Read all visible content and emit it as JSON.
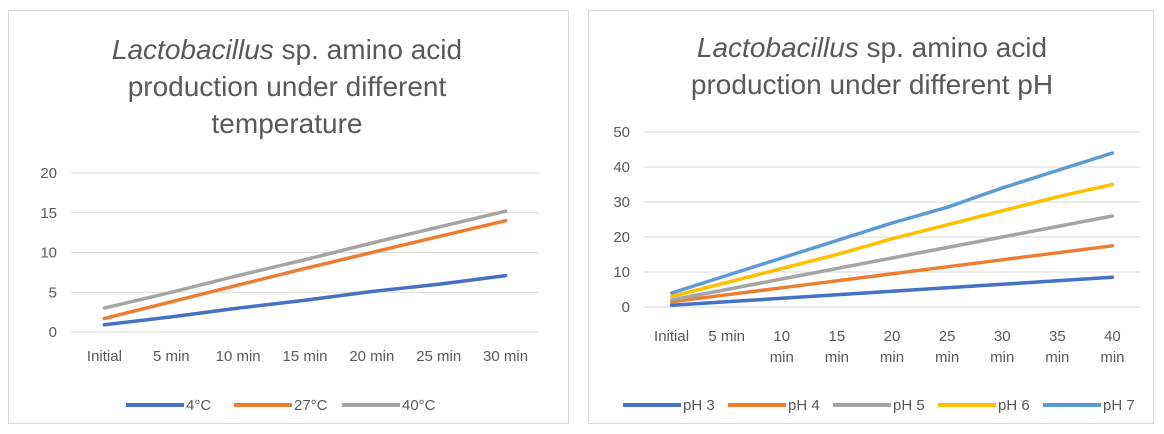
{
  "chart_data": [
    {
      "type": "line",
      "title": "Lactobacillus sp. amino acid production under different temperature",
      "title_lines": [
        {
          "italic": "Lactobacillus",
          "rest": " sp. amino acid"
        },
        {
          "italic": "",
          "rest": "production under different"
        },
        {
          "italic": "",
          "rest": "temperature"
        }
      ],
      "categories": [
        "Initial",
        "5 min",
        "10 min",
        "15 min",
        "20 min",
        "25 min",
        "30 min"
      ],
      "category_lines": [
        [
          "Initial"
        ],
        [
          "5 min"
        ],
        [
          "10 min"
        ],
        [
          "15 min"
        ],
        [
          "20 min"
        ],
        [
          "25 min"
        ],
        [
          "30 min"
        ]
      ],
      "ylim": [
        0,
        20
      ],
      "yticks": [
        0,
        5,
        10,
        15,
        20
      ],
      "grid": true,
      "legend": "bottom",
      "series": [
        {
          "name": "4°C",
          "color": "#4472C4",
          "values": [
            0.9,
            1.9,
            3.0,
            4.0,
            5.1,
            6.0,
            7.1
          ]
        },
        {
          "name": "27°C",
          "color": "#ED7D31",
          "values": [
            1.7,
            3.8,
            5.9,
            8.0,
            10.0,
            12.0,
            14.0
          ]
        },
        {
          "name": "40°C",
          "color": "#A5A5A5",
          "values": [
            3.0,
            5.0,
            7.1,
            9.1,
            11.2,
            13.2,
            15.2
          ]
        }
      ]
    },
    {
      "type": "line",
      "title": "Lactobacillus sp. amino acid production under different pH",
      "title_lines": [
        {
          "italic": "Lactobacillus",
          "rest": " sp. amino acid"
        },
        {
          "italic": "",
          "rest": "production under different pH"
        }
      ],
      "categories": [
        "Initial",
        "5 min",
        "10 min",
        "15 min",
        "20 min",
        "25 min",
        "30 min",
        "35 min",
        "40 min"
      ],
      "category_lines": [
        [
          "Initial"
        ],
        [
          "5 min"
        ],
        [
          "10",
          "min"
        ],
        [
          "15",
          "min"
        ],
        [
          "20",
          "min"
        ],
        [
          "25",
          "min"
        ],
        [
          "30",
          "min"
        ],
        [
          "35",
          "min"
        ],
        [
          "40",
          "min"
        ]
      ],
      "ylim": [
        0,
        50
      ],
      "yticks": [
        0,
        10,
        20,
        30,
        40,
        50
      ],
      "grid": true,
      "legend": "bottom",
      "series": [
        {
          "name": "pH 3",
          "color": "#4472C4",
          "values": [
            0.5,
            1.5,
            2.5,
            3.5,
            4.5,
            5.5,
            6.5,
            7.5,
            8.5
          ]
        },
        {
          "name": "pH 4",
          "color": "#ED7D31",
          "values": [
            1.5,
            3.5,
            5.5,
            7.5,
            9.5,
            11.5,
            13.5,
            15.5,
            17.5
          ]
        },
        {
          "name": "pH 5",
          "color": "#A5A5A5",
          "values": [
            2.0,
            5.0,
            8.0,
            11.0,
            14.0,
            17.0,
            20.0,
            23.0,
            26.0
          ]
        },
        {
          "name": "pH 6",
          "color": "#FFC000",
          "values": [
            3.0,
            7.0,
            11.0,
            15.0,
            19.5,
            23.5,
            27.5,
            31.5,
            35.0
          ]
        },
        {
          "name": "pH 7",
          "color": "#5B9BD5",
          "values": [
            4.0,
            9.0,
            14.0,
            19.0,
            24.0,
            28.5,
            34.0,
            39.0,
            44.0
          ]
        }
      ]
    }
  ]
}
